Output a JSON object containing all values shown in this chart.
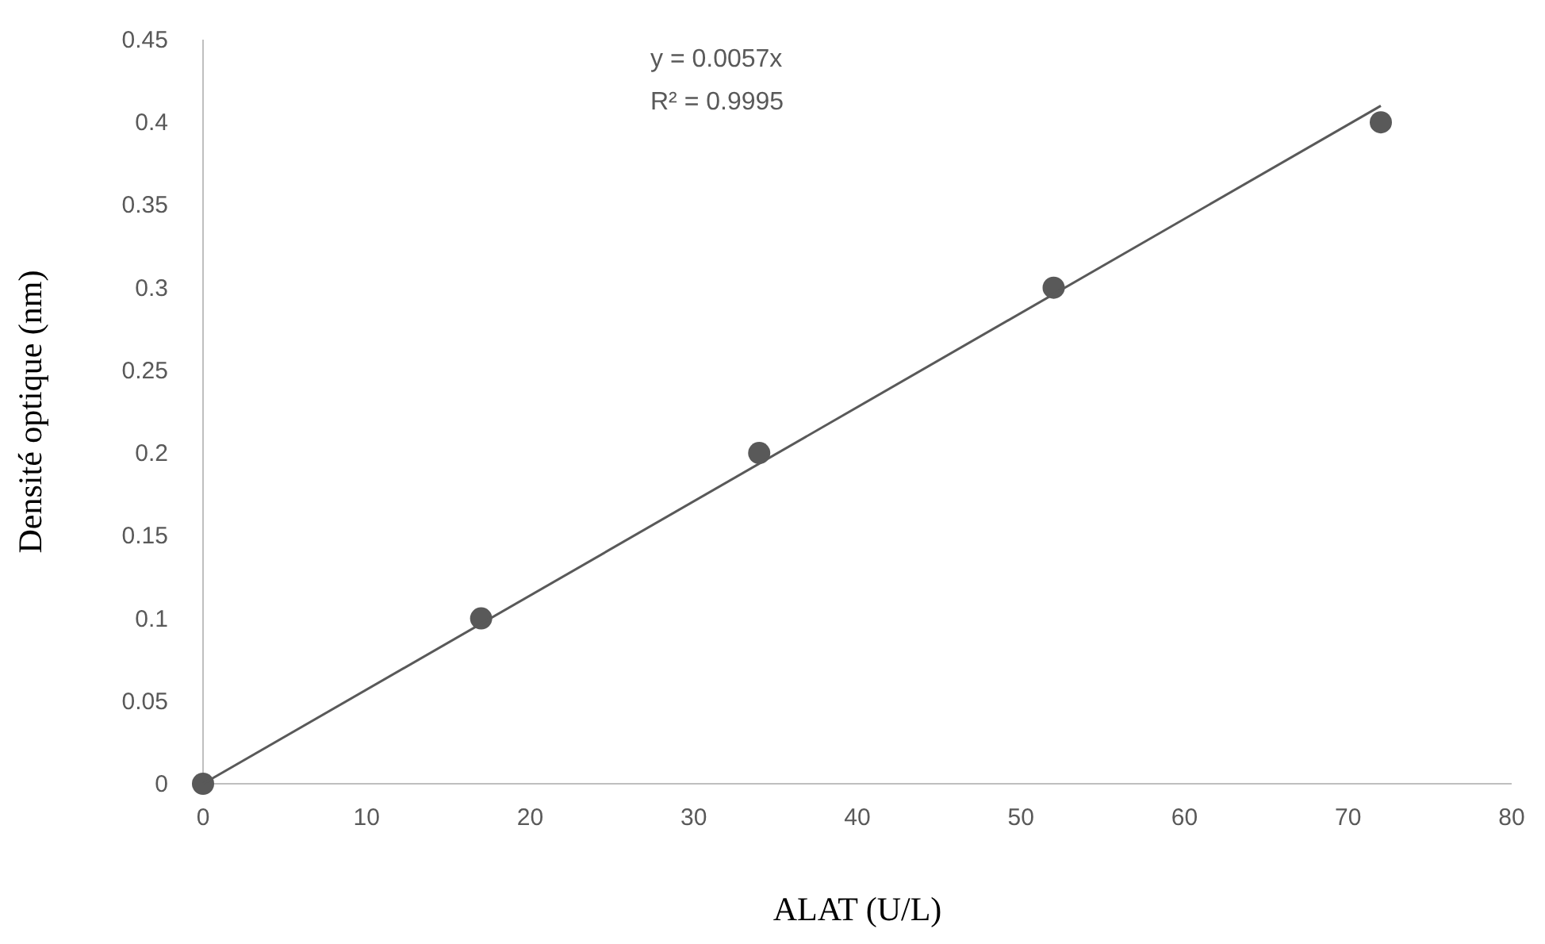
{
  "chart_data": {
    "type": "scatter",
    "xlabel": "ALAT (U/L)",
    "ylabel": "Densité optique (nm)",
    "annotations": [
      "y = 0.0057x",
      "R² = 0.9995"
    ],
    "xlim": [
      0,
      80
    ],
    "xticks": [
      0,
      10,
      20,
      30,
      40,
      50,
      60,
      70,
      80
    ],
    "ylim": [
      0,
      0.45
    ],
    "yticks": [
      0,
      0.05,
      0.1,
      0.15,
      0.2,
      0.25,
      0.3,
      0.35,
      0.4,
      0.45
    ],
    "grid": false,
    "marker": "circle",
    "series": [
      {
        "color": "#595959",
        "x": [
          0,
          17,
          34,
          52,
          72
        ],
        "values": [
          0,
          0.1,
          0.2,
          0.3,
          0.4
        ]
      },
      {
        "type": "line",
        "color": "#595959",
        "line_style": "solid",
        "marker": "none",
        "x": [
          0,
          72
        ],
        "values": [
          0,
          0.41
        ]
      }
    ]
  }
}
